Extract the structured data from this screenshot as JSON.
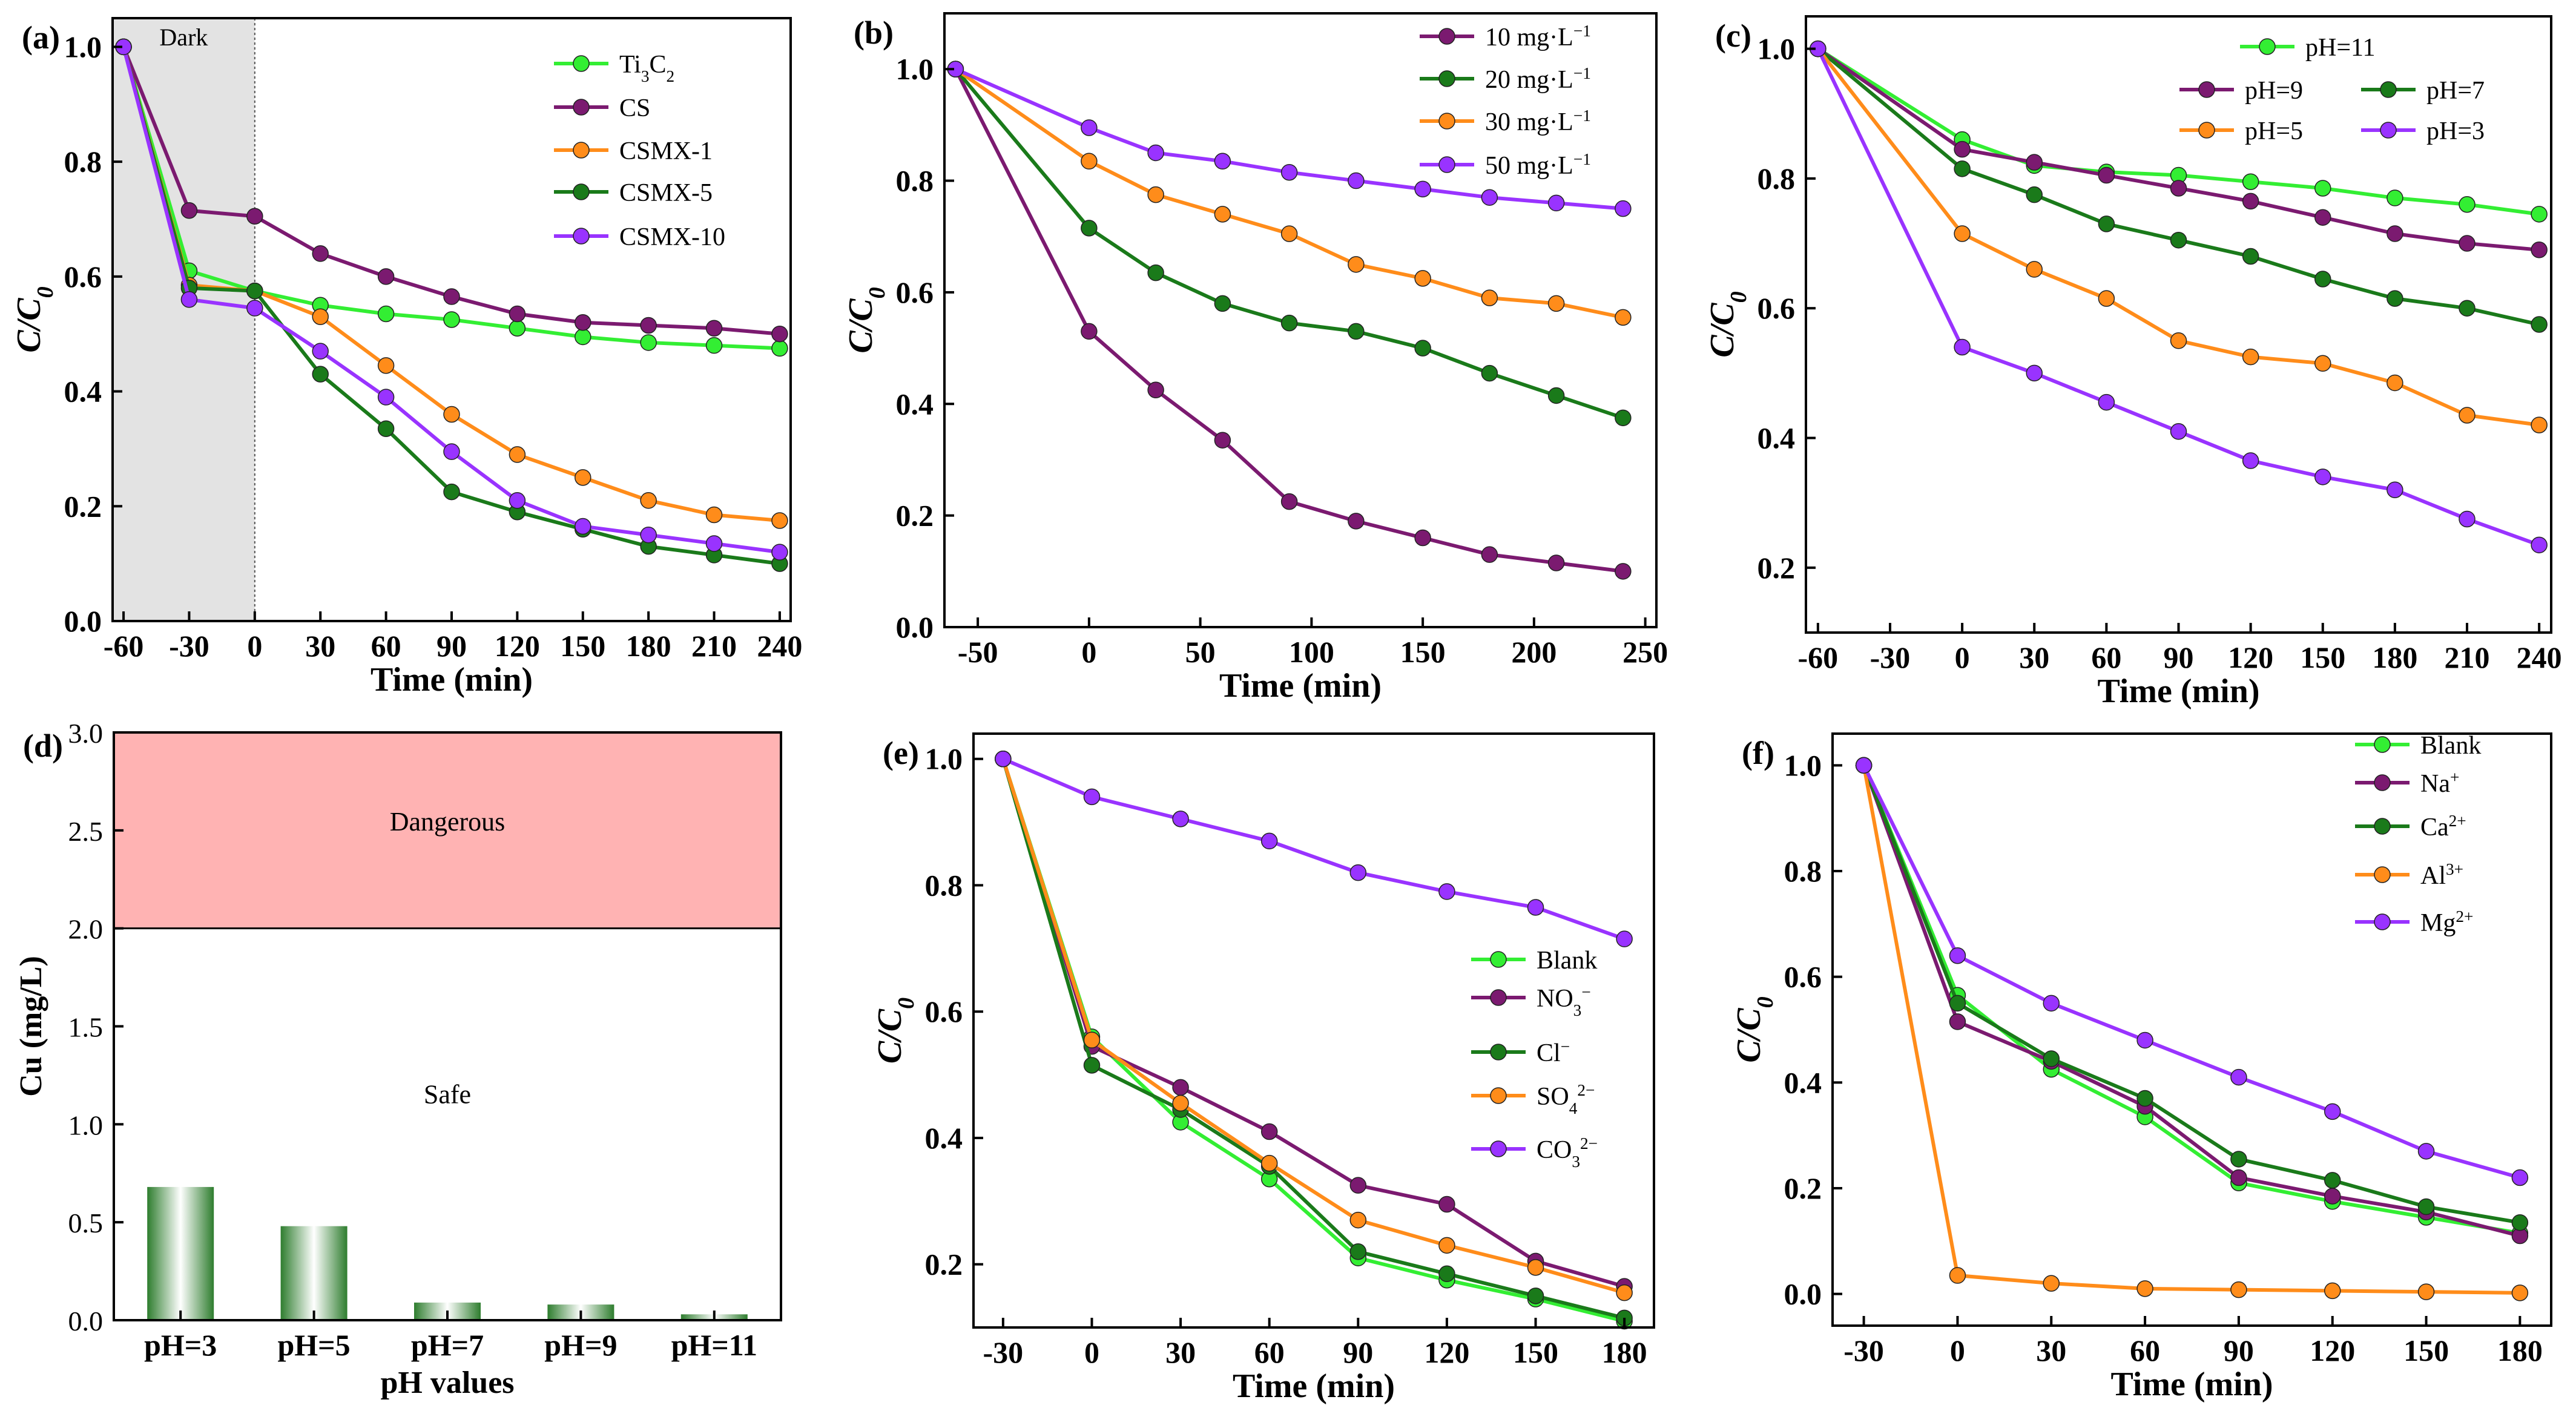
{
  "figure": {
    "panels": [
      "(a)",
      "(b)",
      "(c)",
      "(d)",
      "(e)",
      "(f)"
    ]
  },
  "chart_data": [
    {
      "id": "a",
      "panel_label": "(a)",
      "type": "line",
      "title": "",
      "xlabel": "Time (min)",
      "ylabel": "C/C0",
      "ylabel_main": "C/C",
      "ylabel_sub": "0",
      "xlim": [
        -65,
        245
      ],
      "ylim": [
        0,
        1.05
      ],
      "xticks": [
        -60,
        -30,
        0,
        30,
        60,
        90,
        120,
        150,
        180,
        210,
        240
      ],
      "xtick_labels": [
        "-60",
        "-30",
        "0",
        "30",
        "60",
        "90",
        "120",
        "150",
        "180",
        "210",
        "240"
      ],
      "yticks": [
        0,
        0.2,
        0.4,
        0.6,
        0.8,
        1.0
      ],
      "ytick_labels": [
        "0.0",
        "0.2",
        "0.4",
        "0.6",
        "0.8",
        "1.0"
      ],
      "shaded_region": {
        "x_from": -65,
        "x_to": 0,
        "label": "Dark",
        "color": "#e3e3e3"
      },
      "legend": {
        "placement": "top-right"
      },
      "x": [
        -60,
        -30,
        0,
        30,
        60,
        90,
        120,
        150,
        180,
        210,
        240
      ],
      "series": [
        {
          "name": "Ti3C2",
          "label": {
            "parts": [
              [
                "Ti",
                ""
              ],
              [
                "3",
                "sub"
              ],
              [
                "C",
                ""
              ],
              [
                "2",
                "sub"
              ]
            ]
          },
          "color": "#33ee33",
          "values": [
            1.0,
            0.61,
            0.575,
            0.55,
            0.535,
            0.525,
            0.51,
            0.495,
            0.485,
            0.48,
            0.475
          ]
        },
        {
          "name": "CS",
          "label": {
            "parts": [
              [
                "CS",
                ""
              ]
            ]
          },
          "color": "#7b1a70",
          "values": [
            1.0,
            0.715,
            0.705,
            0.64,
            0.6,
            0.565,
            0.535,
            0.52,
            0.515,
            0.51,
            0.5
          ]
        },
        {
          "name": "CSMX-1",
          "label": {
            "parts": [
              [
                "CSMX-1",
                ""
              ]
            ]
          },
          "color": "#ff8c1a",
          "values": [
            1.0,
            0.585,
            0.575,
            0.53,
            0.445,
            0.36,
            0.29,
            0.25,
            0.21,
            0.185,
            0.175
          ]
        },
        {
          "name": "CSMX-5",
          "label": {
            "parts": [
              [
                "CSMX-5",
                ""
              ]
            ]
          },
          "color": "#1a7a1a",
          "values": [
            1.0,
            0.58,
            0.575,
            0.43,
            0.335,
            0.225,
            0.19,
            0.16,
            0.13,
            0.115,
            0.1
          ]
        },
        {
          "name": "CSMX-10",
          "label": {
            "parts": [
              [
                "CSMX-10",
                ""
              ]
            ]
          },
          "color": "#9933ff",
          "values": [
            1.0,
            0.56,
            0.545,
            0.47,
            0.39,
            0.295,
            0.21,
            0.165,
            0.15,
            0.135,
            0.12
          ]
        }
      ]
    },
    {
      "id": "b",
      "panel_label": "(b)",
      "type": "line",
      "title": "",
      "xlabel": "Time  (min)",
      "ylabel": "C/C0",
      "ylabel_main": "C/C",
      "ylabel_sub": "0",
      "xlim": [
        -65,
        255
      ],
      "ylim": [
        0,
        1.1
      ],
      "xticks": [
        -50,
        0,
        50,
        100,
        150,
        200,
        250
      ],
      "xtick_labels": [
        "-50",
        "0",
        "50",
        "100",
        "150",
        "200",
        "250"
      ],
      "yticks": [
        0,
        0.2,
        0.4,
        0.6,
        0.8,
        1.0
      ],
      "ytick_labels": [
        "0.0",
        "0.2",
        "0.4",
        "0.6",
        "0.8",
        "1.0"
      ],
      "legend": {
        "placement": "top-right"
      },
      "x": [
        -60,
        0,
        30,
        60,
        90,
        120,
        150,
        180,
        210,
        240
      ],
      "series": [
        {
          "name": "10 mg·L−1",
          "label": {
            "parts": [
              [
                "10 mg·L",
                ""
              ],
              [
                "−1",
                "sup"
              ]
            ]
          },
          "color": "#7b1a70",
          "values": [
            1.0,
            0.53,
            0.425,
            0.335,
            0.225,
            0.19,
            0.16,
            0.13,
            0.115,
            0.1
          ]
        },
        {
          "name": "20 mg·L−1",
          "label": {
            "parts": [
              [
                "20 mg·L",
                ""
              ],
              [
                "−1",
                "sup"
              ]
            ]
          },
          "color": "#1a7a1a",
          "values": [
            1.0,
            0.715,
            0.635,
            0.58,
            0.545,
            0.53,
            0.5,
            0.455,
            0.415,
            0.375
          ]
        },
        {
          "name": "30 mg·L−1",
          "label": {
            "parts": [
              [
                "30 mg·L",
                ""
              ],
              [
                "−1",
                "sup"
              ]
            ]
          },
          "color": "#ff8c1a",
          "values": [
            1.0,
            0.835,
            0.775,
            0.74,
            0.705,
            0.65,
            0.625,
            0.59,
            0.58,
            0.555
          ]
        },
        {
          "name": "50 mg·L−1",
          "label": {
            "parts": [
              [
                "50 mg·L",
                ""
              ],
              [
                "−1",
                "sup"
              ]
            ]
          },
          "color": "#9933ff",
          "values": [
            1.0,
            0.895,
            0.85,
            0.835,
            0.815,
            0.8,
            0.785,
            0.77,
            0.76,
            0.75
          ]
        }
      ]
    },
    {
      "id": "c",
      "panel_label": "(c)",
      "type": "line",
      "title": "",
      "xlabel": "Time (min)",
      "ylabel": "C/C0",
      "ylabel_main": "C/C",
      "ylabel_sub": "0",
      "xlim": [
        -65,
        245
      ],
      "ylim": [
        0.1,
        1.05
      ],
      "xticks": [
        -60,
        -30,
        0,
        30,
        60,
        90,
        120,
        150,
        180,
        210,
        240
      ],
      "xtick_labels": [
        "-60",
        "-30",
        "0",
        "30",
        "60",
        "90",
        "120",
        "150",
        "180",
        "210",
        "240"
      ],
      "yticks": [
        0.2,
        0.4,
        0.6,
        0.8,
        1.0
      ],
      "ytick_labels": [
        "0.2",
        "0.4",
        "0.6",
        "0.8",
        "1.0"
      ],
      "legend": {
        "placement": "top-left, two columns"
      },
      "x": [
        -60,
        0,
        30,
        60,
        90,
        120,
        150,
        180,
        210,
        240
      ],
      "series": [
        {
          "name": "pH=11",
          "label": {
            "parts": [
              [
                "pH=11",
                ""
              ]
            ]
          },
          "color": "#33ee33",
          "values": [
            1.0,
            0.86,
            0.82,
            0.81,
            0.805,
            0.795,
            0.785,
            0.77,
            0.76,
            0.745
          ]
        },
        {
          "name": "pH=9",
          "label": {
            "parts": [
              [
                "pH=9",
                ""
              ]
            ]
          },
          "color": "#7b1a70",
          "values": [
            1.0,
            0.845,
            0.825,
            0.805,
            0.785,
            0.765,
            0.74,
            0.715,
            0.7,
            0.69
          ]
        },
        {
          "name": "pH=7",
          "label": {
            "parts": [
              [
                "pH=7",
                ""
              ]
            ]
          },
          "color": "#1a7a1a",
          "values": [
            1.0,
            0.815,
            0.775,
            0.73,
            0.705,
            0.68,
            0.645,
            0.615,
            0.6,
            0.575
          ]
        },
        {
          "name": "pH=5",
          "label": {
            "parts": [
              [
                "pH=5",
                ""
              ]
            ]
          },
          "color": "#ff8c1a",
          "values": [
            1.0,
            0.715,
            0.66,
            0.615,
            0.55,
            0.525,
            0.515,
            0.485,
            0.435,
            0.42
          ]
        },
        {
          "name": "pH=3",
          "label": {
            "parts": [
              [
                "pH=3",
                ""
              ]
            ]
          },
          "color": "#9933ff",
          "values": [
            1.0,
            0.54,
            0.5,
            0.455,
            0.41,
            0.365,
            0.34,
            0.32,
            0.275,
            0.235
          ]
        }
      ]
    },
    {
      "id": "d",
      "panel_label": "(d)",
      "type": "bar",
      "title": "",
      "xlabel": "pH values",
      "ylabel": "Cu (mg/L)",
      "ylim": [
        0,
        3.0
      ],
      "yticks": [
        0,
        0.5,
        1.0,
        1.5,
        2.0,
        2.5,
        3.0
      ],
      "ytick_labels": [
        "0.0",
        "0.5",
        "1.0",
        "1.5",
        "2.0",
        "2.5",
        "3.0"
      ],
      "categories": [
        "pH=3",
        "pH=5",
        "pH=7",
        "pH=9",
        "pH=11"
      ],
      "values": [
        0.68,
        0.48,
        0.09,
        0.08,
        0.03
      ],
      "bar_color": "#2e7d2e",
      "regions": [
        {
          "label": "Dangerous",
          "y_from": 2.0,
          "y_to": 3.0,
          "color": "#ffb3b3"
        },
        {
          "label": "Safe",
          "y_from": 0,
          "y_to": 2.0,
          "color": "#ffffff"
        }
      ]
    },
    {
      "id": "e",
      "panel_label": "(e)",
      "type": "line",
      "title": "",
      "xlabel": "Time (min)",
      "ylabel": "C/C0",
      "ylabel_main": "C/C",
      "ylabel_sub": "0",
      "xlim": [
        -40,
        190
      ],
      "ylim": [
        0.1,
        1.04
      ],
      "xticks": [
        -30,
        0,
        30,
        60,
        90,
        120,
        150,
        180
      ],
      "xtick_labels": [
        "-30",
        "0",
        "30",
        "60",
        "90",
        "120",
        "150",
        "180"
      ],
      "yticks": [
        0.2,
        0.4,
        0.6,
        0.8,
        1.0
      ],
      "ytick_labels": [
        "0.2",
        "0.4",
        "0.6",
        "0.8",
        "1.0"
      ],
      "legend": {
        "placement": "right"
      },
      "x": [
        -30,
        0,
        30,
        60,
        90,
        120,
        150,
        180
      ],
      "series": [
        {
          "name": "Blank",
          "label": {
            "parts": [
              [
                "Blank",
                ""
              ]
            ]
          },
          "color": "#33ee33",
          "values": [
            1.0,
            0.56,
            0.425,
            0.335,
            0.21,
            0.175,
            0.145,
            0.11
          ]
        },
        {
          "name": "NO3−",
          "label": {
            "parts": [
              [
                "NO",
                ""
              ],
              [
                "3",
                "sub"
              ],
              [
                "−",
                "sup"
              ]
            ]
          },
          "color": "#7b1a70",
          "values": [
            1.0,
            0.545,
            0.48,
            0.41,
            0.325,
            0.295,
            0.205,
            0.165
          ]
        },
        {
          "name": "Cl−",
          "label": {
            "parts": [
              [
                "Cl",
                ""
              ],
              [
                "−",
                "sup"
              ]
            ]
          },
          "color": "#1a7a1a",
          "values": [
            1.0,
            0.515,
            0.445,
            0.355,
            0.22,
            0.185,
            0.15,
            0.115
          ]
        },
        {
          "name": "SO42−",
          "label": {
            "parts": [
              [
                "SO",
                ""
              ],
              [
                "4",
                "sub"
              ],
              [
                "2−",
                "sup"
              ]
            ]
          },
          "color": "#ff8c1a",
          "values": [
            1.0,
            0.555,
            0.455,
            0.36,
            0.27,
            0.23,
            0.195,
            0.155
          ]
        },
        {
          "name": "CO32−",
          "label": {
            "parts": [
              [
                "CO",
                ""
              ],
              [
                "3",
                "sub"
              ],
              [
                "2−",
                "sup"
              ]
            ]
          },
          "color": "#9933ff",
          "values": [
            1.0,
            0.94,
            0.905,
            0.87,
            0.82,
            0.79,
            0.765,
            0.715
          ]
        }
      ]
    },
    {
      "id": "f",
      "panel_label": "(f)",
      "type": "line",
      "title": "",
      "xlabel": "Time (min)",
      "ylabel": "C/C0",
      "ylabel_main": "C/C",
      "ylabel_sub": "0",
      "xlim": [
        -40,
        190
      ],
      "ylim": [
        -0.06,
        1.06
      ],
      "xticks": [
        -30,
        0,
        30,
        60,
        90,
        120,
        150,
        180
      ],
      "xtick_labels": [
        "-30",
        "0",
        "30",
        "60",
        "90",
        "120",
        "150",
        "180"
      ],
      "yticks": [
        0,
        0.2,
        0.4,
        0.6,
        0.8,
        1.0
      ],
      "ytick_labels": [
        "0.0",
        "0.2",
        "0.4",
        "0.6",
        "0.8",
        "1.0"
      ],
      "legend": {
        "placement": "top-right"
      },
      "x": [
        -30,
        0,
        30,
        60,
        90,
        120,
        150,
        180
      ],
      "series": [
        {
          "name": "Blank",
          "label": {
            "parts": [
              [
                "Blank",
                ""
              ]
            ]
          },
          "color": "#33ee33",
          "values": [
            1.0,
            0.565,
            0.425,
            0.335,
            0.21,
            0.175,
            0.145,
            0.115
          ]
        },
        {
          "name": "Na+",
          "label": {
            "parts": [
              [
                "Na",
                ""
              ],
              [
                "+",
                "sup"
              ]
            ]
          },
          "color": "#7b1a70",
          "values": [
            1.0,
            0.515,
            0.44,
            0.355,
            0.22,
            0.185,
            0.155,
            0.11
          ]
        },
        {
          "name": "Ca2+",
          "label": {
            "parts": [
              [
                "Ca",
                ""
              ],
              [
                "2+",
                "sup"
              ]
            ]
          },
          "color": "#1a7a1a",
          "values": [
            1.0,
            0.55,
            0.445,
            0.37,
            0.255,
            0.215,
            0.165,
            0.135
          ]
        },
        {
          "name": "Al3+",
          "label": {
            "parts": [
              [
                "Al",
                ""
              ],
              [
                "3+",
                "sup"
              ]
            ]
          },
          "color": "#ff8c1a",
          "values": [
            1.0,
            0.035,
            0.02,
            0.01,
            0.008,
            0.006,
            0.004,
            0.002
          ]
        },
        {
          "name": "Mg2+",
          "label": {
            "parts": [
              [
                "Mg",
                ""
              ],
              [
                "2+",
                "sup"
              ]
            ]
          },
          "color": "#9933ff",
          "values": [
            1.0,
            0.64,
            0.55,
            0.48,
            0.41,
            0.345,
            0.27,
            0.22
          ]
        }
      ]
    }
  ]
}
